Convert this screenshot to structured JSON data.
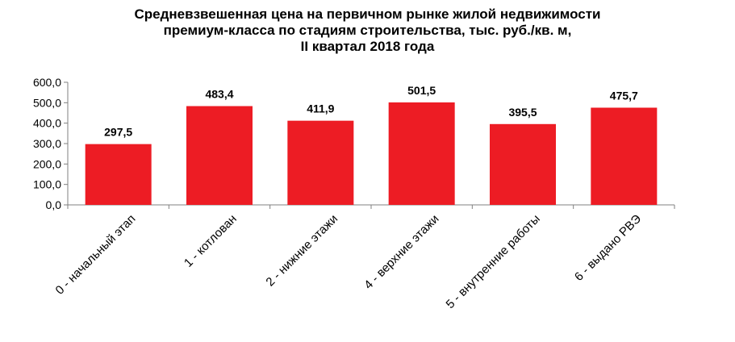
{
  "chart_data": {
    "type": "bar",
    "title_lines": [
      "Средневзвешенная цена на первичном рынке жилой недвижимости",
      "премиум-класса по стадиям строительства, тыс. руб./кв. м,",
      "II квартал 2018 года"
    ],
    "categories": [
      "0 - начальный этап",
      "1 - котлован",
      "2 - нижние этажи",
      "4 - верхние этажи",
      "5 - внутренние работы",
      "6 - выдано РВЭ"
    ],
    "values": [
      297.5,
      483.4,
      411.9,
      501.5,
      395.5,
      475.7
    ],
    "value_labels": [
      "297,5",
      "483,4",
      "411,9",
      "501,5",
      "395,5",
      "475,7"
    ],
    "y_ticks": [
      "0,0",
      "100,0",
      "200,0",
      "300,0",
      "400,0",
      "500,0",
      "600,0"
    ],
    "ylim": [
      0,
      600
    ],
    "grid": false,
    "legend": false,
    "bar_color": "#ED1C24"
  }
}
